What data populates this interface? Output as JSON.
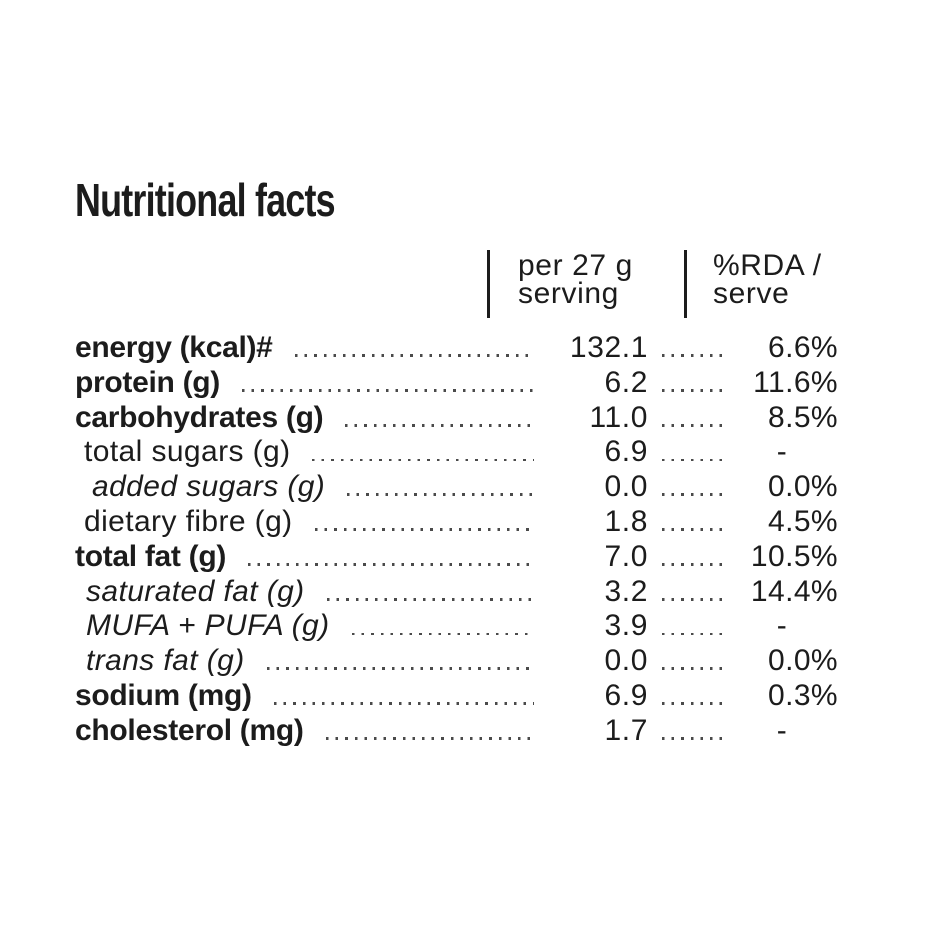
{
  "title": "Nutritional facts",
  "colors": {
    "text": "#1c1c1c",
    "dots": "#4a4a4a"
  },
  "table": {
    "columns": {
      "serving": {
        "line1": "per 27 g",
        "line2": "serving"
      },
      "rda": {
        "line1": "%RDA /",
        "line2": "serve"
      }
    },
    "rows": [
      {
        "label": "energy (kcal)#",
        "value": "132.1",
        "rda": "6.6%"
      },
      {
        "label": "protein (g)",
        "value": "6.2",
        "rda": "11.6%"
      },
      {
        "label": "carbohydrates (g)",
        "value": "11.0",
        "rda": "8.5%"
      },
      {
        "label": "total sugars (g)",
        "value": "6.9",
        "rda": "-"
      },
      {
        "label": "added sugars (g)",
        "value": "0.0",
        "rda": "0.0%"
      },
      {
        "label": "dietary fibre (g)",
        "value": "1.8",
        "rda": "4.5%"
      },
      {
        "label": "total fat (g)",
        "value": "7.0",
        "rda": "10.5%"
      },
      {
        "label": "saturated fat (g)",
        "value": "3.2",
        "rda": "14.4%"
      },
      {
        "label": "MUFA + PUFA (g)",
        "value": "3.9",
        "rda": "-"
      },
      {
        "label": "trans fat (g)",
        "value": "0.0",
        "rda": "0.0%"
      },
      {
        "label": "sodium (mg)",
        "value": "6.9",
        "rda": "0.3%"
      },
      {
        "label": "cholesterol (mg)",
        "value": "1.7",
        "rda": "-"
      }
    ]
  }
}
